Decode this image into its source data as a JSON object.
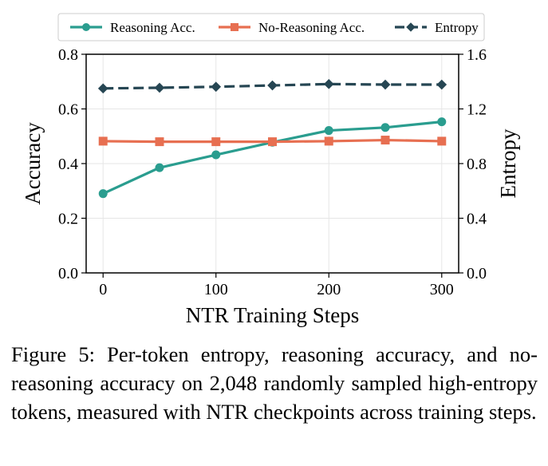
{
  "chart_data": {
    "type": "line",
    "x": [
      0,
      50,
      100,
      150,
      200,
      250,
      300
    ],
    "xlabel": "NTR Training Steps",
    "xticks": [
      "0",
      "100",
      "200",
      "300"
    ],
    "xlim": [
      -15,
      315
    ],
    "ylabel_left": "Accuracy",
    "ylim_left": [
      0.0,
      0.8
    ],
    "yticks_left": [
      "0.0",
      "0.2",
      "0.4",
      "0.6",
      "0.8"
    ],
    "ylabel_right": "Entropy",
    "ylim_right": [
      0.0,
      1.6
    ],
    "yticks_right": [
      "0.0",
      "0.4",
      "0.8",
      "1.2",
      "1.6"
    ],
    "grid": true,
    "legend_placement": "top",
    "series": [
      {
        "name": "Reasoning Acc.",
        "axis": "left",
        "color": "#2a9d8f",
        "marker": "circle",
        "dash": "solid",
        "values": [
          0.29,
          0.385,
          0.432,
          0.478,
          0.521,
          0.532,
          0.553
        ]
      },
      {
        "name": "No-Reasoning Acc.",
        "axis": "left",
        "color": "#e76f51",
        "marker": "square",
        "dash": "solid",
        "values": [
          0.482,
          0.48,
          0.48,
          0.48,
          0.482,
          0.486,
          0.482
        ]
      },
      {
        "name": "Entropy",
        "axis": "right",
        "color": "#264653",
        "marker": "diamond",
        "dash": "dashed",
        "values": [
          1.35,
          1.355,
          1.362,
          1.372,
          1.382,
          1.378,
          1.378
        ]
      }
    ]
  },
  "caption": {
    "text": "Figure 5: Per-token entropy, reasoning accuracy, and no-reasoning accuracy on 2,048 randomly sampled high-entropy tokens, measured with NTR checkpoints across training steps."
  }
}
